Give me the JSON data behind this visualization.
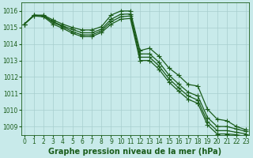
{
  "bg_color": "#c8eaea",
  "grid_color": "#a8cece",
  "line_color": "#1a5c1a",
  "title": "Graphe pression niveau de la mer (hPa)",
  "ylim": [
    1008.5,
    1016.5
  ],
  "yticks": [
    1009,
    1010,
    1011,
    1012,
    1013,
    1014,
    1015,
    1016
  ],
  "xlim": [
    -0.3,
    23.3
  ],
  "xticks": [
    0,
    1,
    2,
    3,
    4,
    5,
    6,
    7,
    8,
    9,
    10,
    11,
    12,
    13,
    14,
    15,
    16,
    17,
    18,
    19,
    20,
    21,
    22,
    23
  ],
  "series": [
    [
      1015.2,
      1015.75,
      1015.75,
      1015.45,
      1015.2,
      1015.0,
      1014.85,
      1014.85,
      1015.05,
      1015.75,
      1016.0,
      1016.0,
      1013.6,
      1013.75,
      1013.25,
      1012.55,
      1012.1,
      1011.55,
      1011.45,
      1010.05,
      1009.45,
      1009.35,
      1009.0,
      1008.8
    ],
    [
      1015.2,
      1015.75,
      1015.7,
      1015.3,
      1015.05,
      1014.75,
      1014.55,
      1014.55,
      1014.8,
      1015.35,
      1015.65,
      1015.7,
      1013.2,
      1013.2,
      1012.65,
      1011.9,
      1011.35,
      1010.85,
      1010.6,
      1009.3,
      1008.75,
      1008.75,
      1008.65,
      1008.55
    ],
    [
      1015.2,
      1015.7,
      1015.65,
      1015.2,
      1014.95,
      1014.65,
      1014.45,
      1014.45,
      1014.7,
      1015.2,
      1015.5,
      1015.55,
      1013.0,
      1013.0,
      1012.45,
      1011.7,
      1011.15,
      1010.65,
      1010.4,
      1009.1,
      1008.55,
      1008.55,
      1008.5,
      1008.4
    ],
    [
      1015.2,
      1015.72,
      1015.72,
      1015.35,
      1015.1,
      1014.88,
      1014.68,
      1014.68,
      1014.9,
      1015.5,
      1015.8,
      1015.82,
      1013.4,
      1013.4,
      1012.88,
      1012.12,
      1011.58,
      1011.08,
      1010.85,
      1009.55,
      1009.0,
      1009.0,
      1008.85,
      1008.7
    ]
  ],
  "marker": "+",
  "markersize": 4,
  "linewidth": 0.9,
  "title_fontsize": 7.0,
  "tick_fontsize": 5.5,
  "title_fontweight": "bold"
}
